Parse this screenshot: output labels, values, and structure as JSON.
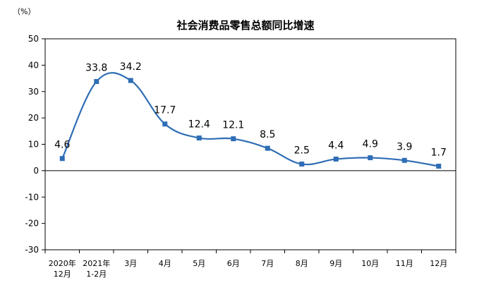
{
  "chart_data": {
    "type": "line",
    "title": "社会消费品零售总额同比增速",
    "unit_label": "（%）",
    "xlabel": "",
    "ylabel": "",
    "ylim": [
      -30,
      50
    ],
    "yticks": [
      50,
      40,
      30,
      20,
      10,
      0,
      -10,
      -20,
      -30
    ],
    "grid": false,
    "legend": "none",
    "line_color": "#2e6db5",
    "categories": [
      [
        "2020年",
        "12月"
      ],
      [
        "2021年",
        "1-2月"
      ],
      [
        "3月"
      ],
      [
        "4月"
      ],
      [
        "5月"
      ],
      [
        "6月"
      ],
      [
        "7月"
      ],
      [
        "8月"
      ],
      [
        "9月"
      ],
      [
        "10月"
      ],
      [
        "11月"
      ],
      [
        "12月"
      ]
    ],
    "values": [
      4.6,
      33.8,
      34.2,
      17.7,
      12.4,
      12.1,
      8.5,
      2.5,
      4.4,
      4.9,
      3.9,
      1.7
    ],
    "data_labels": [
      "4.6",
      "33.8",
      "34.2",
      "17.7",
      "12.4",
      "12.1",
      "8.5",
      "2.5",
      "4.4",
      "4.9",
      "3.9",
      "1.7"
    ]
  }
}
